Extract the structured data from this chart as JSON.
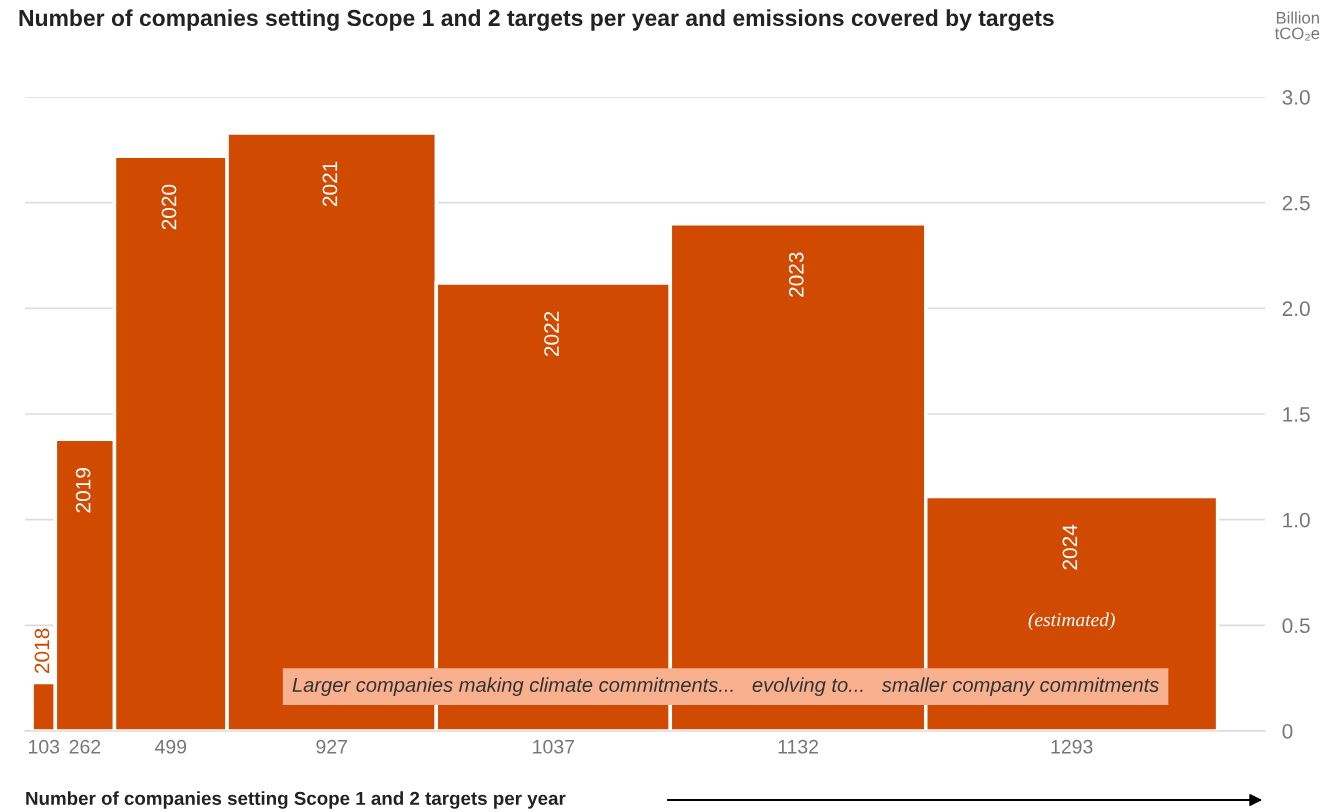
{
  "chart_data": {
    "type": "bar",
    "title": "Number of companies setting Scope 1 and 2 targets per year and emissions covered by targets",
    "ylabel": "Billion tCO₂e",
    "xlabel": "Number of companies setting Scope 1 and 2 targets per year",
    "categories": [
      "103",
      "262",
      "499",
      "927",
      "1037",
      "1132",
      "1293"
    ],
    "values": [
      0.23,
      1.38,
      2.72,
      2.83,
      2.12,
      2.4,
      1.11
    ],
    "color": "#d04a02",
    "ylim": [
      0,
      3
    ],
    "yticks": [
      {
        "value": 0,
        "label": "0"
      },
      {
        "value": 0.5,
        "label": "0.5"
      },
      {
        "value": 1,
        "label": "1.0"
      },
      {
        "value": 1.5,
        "label": "1.5"
      },
      {
        "value": 2,
        "label": "2.0"
      },
      {
        "value": 2.5,
        "label": "2.5"
      },
      {
        "value": 3,
        "label": "3.0"
      }
    ],
    "grid": "y",
    "annotations": [
      {
        "text": "2018",
        "x": "103",
        "y": 0.23
      },
      {
        "text": "2019",
        "x": "262",
        "y": 1.38
      },
      {
        "text": "2020",
        "x": "499",
        "y": 2.72
      },
      {
        "text": "2021",
        "x": "927",
        "y": 2.83
      },
      {
        "text": "2022",
        "x": "1037",
        "y": 2.12
      },
      {
        "text": "2023",
        "x": "1132",
        "y": 2.4
      },
      {
        "text": "2024",
        "x": "1293",
        "y": 1.11
      },
      "Larger companies making climate commitments...   evolving to...   smaller company commitments",
      "(estimated)"
    ]
  }
}
